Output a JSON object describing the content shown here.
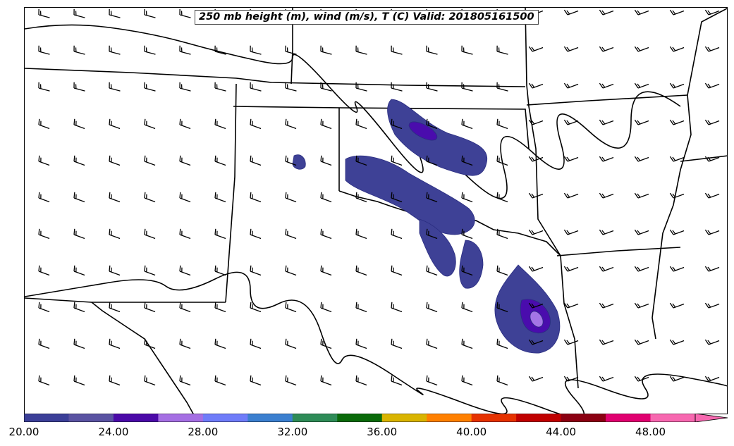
{
  "title": "250 mb height (m), wind (m/s), T (C) Valid: 201805161500",
  "colorbar": {
    "colors": [
      "#3b3f98",
      "#5a53a2",
      "#4b0aa8",
      "#a56fe3",
      "#6f7cf9",
      "#3b7fcf",
      "#2e8b57",
      "#0a6a0a",
      "#d9b400",
      "#ff8000",
      "#e63200",
      "#c00000",
      "#8b0012",
      "#e00070",
      "#f768b0"
    ],
    "tick_labels": [
      "20.00",
      "24.00",
      "28.00",
      "32.00",
      "36.00",
      "40.00",
      "44.00",
      "48.00"
    ],
    "extend": "max"
  },
  "fill_colors": {
    "level1": "#3e4196",
    "level2": "#5a55a6",
    "level3": "#4a0cad",
    "level4": "#a475e6",
    "outline": "#2a2d80"
  },
  "legend_icons": {
    "barb": "wind-barb-icon"
  }
}
